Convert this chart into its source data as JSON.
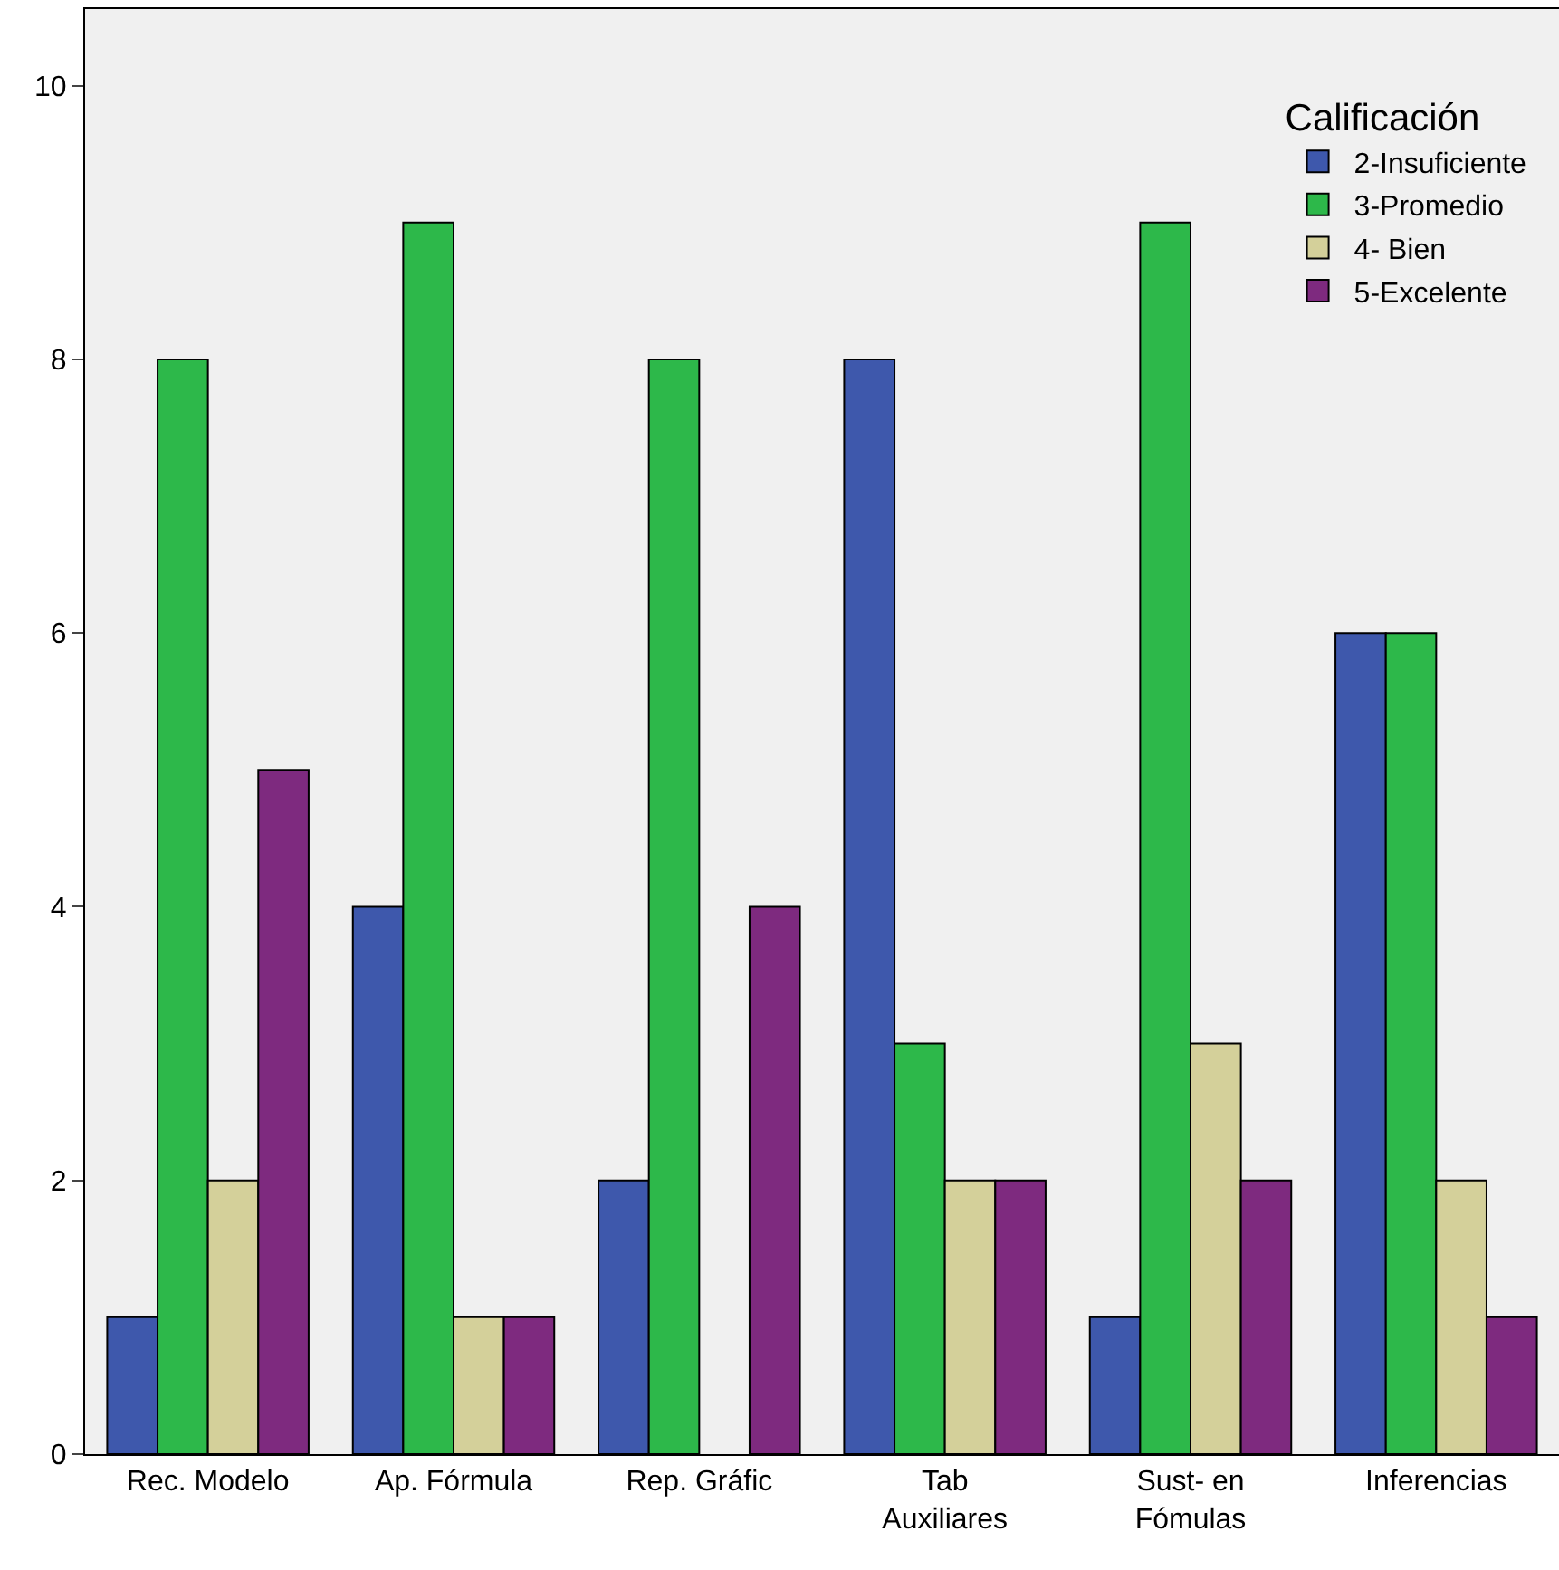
{
  "chart_data": {
    "type": "bar",
    "categories": [
      "Rec. Modelo",
      "Ap. Fórmula",
      "Rep. Gráfic",
      "Tab\nAuxiliares",
      "Sust- en\nFómulas",
      "Inferencias"
    ],
    "legend_title": "Calificación",
    "legend": "top right",
    "grid": false,
    "ylim": [
      0,
      10.56
    ],
    "yticks": [
      0,
      2,
      4,
      6,
      8,
      10
    ],
    "series": [
      {
        "name": "2-Insuficiente",
        "color": "#3e58ac",
        "values": [
          1,
          4,
          2,
          8,
          1,
          6
        ]
      },
      {
        "name": "3-Promedio",
        "color": "#2db84a",
        "values": [
          8,
          9,
          8,
          3,
          9,
          6
        ]
      },
      {
        "name": "4- Bien",
        "color": "#d4d09a",
        "values": [
          2,
          1,
          null,
          2,
          3,
          2
        ]
      },
      {
        "name": "5-Excelente",
        "color": "#7e2a7f",
        "values": [
          5,
          1,
          4,
          2,
          2,
          1
        ]
      }
    ]
  }
}
